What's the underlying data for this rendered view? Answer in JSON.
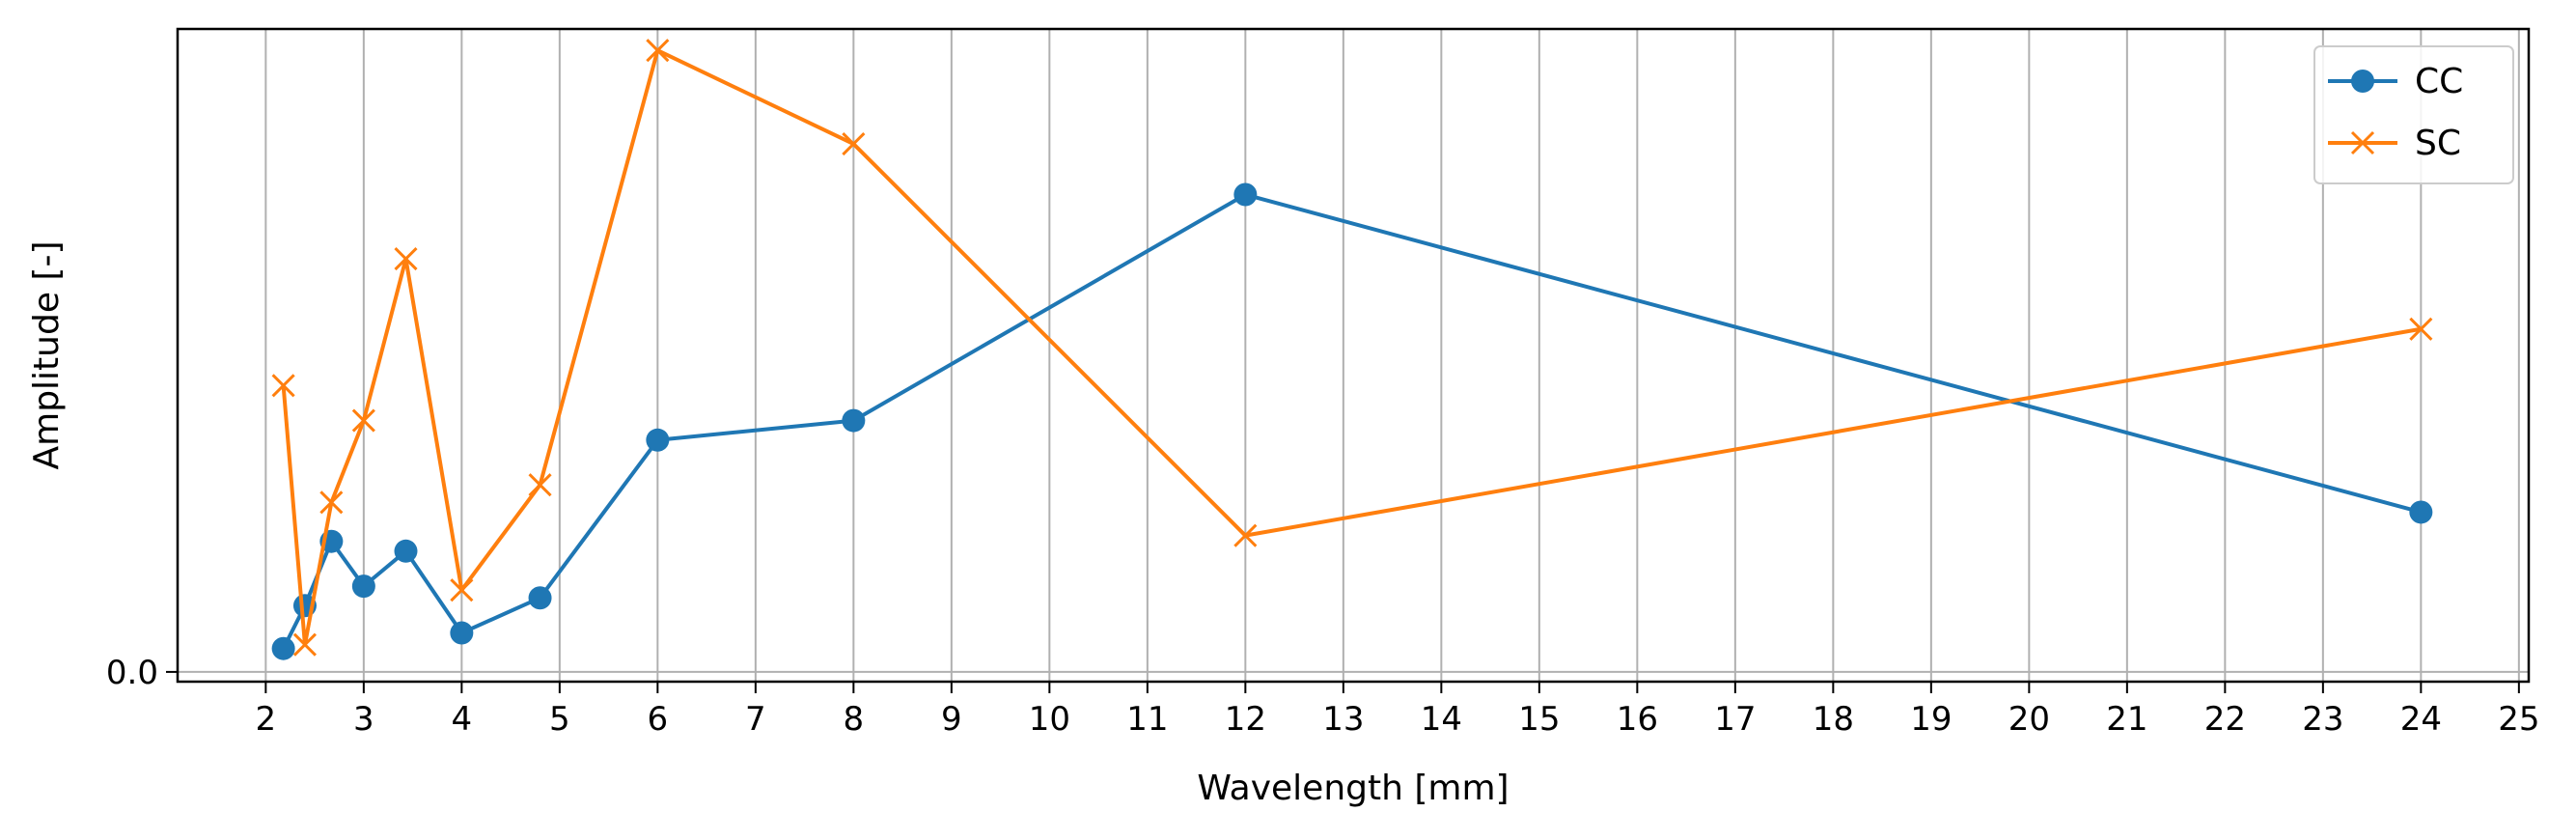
{
  "chart_data": {
    "type": "line",
    "xlabel": "Wavelength [mm]",
    "ylabel": "Amplitude [-]",
    "xlim": [
      1.1,
      25.1
    ],
    "ylim": [
      -0.05,
      3.3
    ],
    "xticks": [
      "2",
      "3",
      "4",
      "5",
      "6",
      "7",
      "8",
      "9",
      "10",
      "11",
      "12",
      "13",
      "14",
      "15",
      "16",
      "17",
      "18",
      "19",
      "20",
      "21",
      "22",
      "23",
      "24",
      "25"
    ],
    "yticks": [
      "0.0"
    ],
    "grid": "vertical",
    "legend_position": "top-right",
    "series": [
      {
        "name": "CC",
        "color": "#1f77b4",
        "marker": "circle",
        "x": [
          2.18,
          2.4,
          2.67,
          3.0,
          3.43,
          4.0,
          4.8,
          6.0,
          8.0,
          12.0,
          24.0
        ],
        "y": [
          0.12,
          0.34,
          0.67,
          0.44,
          0.62,
          0.2,
          0.38,
          1.19,
          1.29,
          2.45,
          0.82
        ]
      },
      {
        "name": "SC",
        "color": "#ff7f0e",
        "marker": "x",
        "x": [
          2.18,
          2.4,
          2.67,
          3.0,
          3.43,
          4.0,
          4.8,
          6.0,
          8.0,
          12.0,
          24.0
        ],
        "y": [
          1.47,
          0.14,
          0.87,
          1.29,
          2.12,
          0.42,
          0.96,
          3.19,
          2.71,
          0.7,
          1.76
        ]
      }
    ]
  }
}
